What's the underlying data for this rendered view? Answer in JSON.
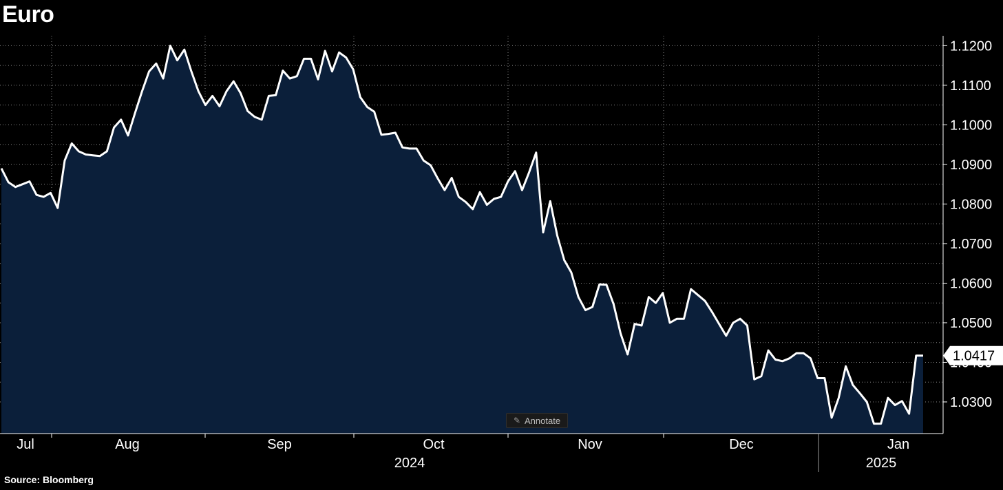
{
  "header": {
    "title": "Euro"
  },
  "footer": {
    "source": "Source: Bloomberg"
  },
  "toolbar": {
    "annotate_label": "Annotate",
    "annotate_icon": "pencil-icon"
  },
  "colors": {
    "background": "#000000",
    "line": "#ffffff",
    "area_fill": "#0b1f3a",
    "grid": "#8c8c8c"
  },
  "chart_data": {
    "type": "area",
    "title": "Euro",
    "xlabel": "",
    "ylabel": "",
    "ylim": [
      1.022,
      1.1225
    ],
    "grid": true,
    "y_axis_position": "right",
    "y_ticks": [
      "1.0300",
      "1.0400",
      "1.0500",
      "1.0600",
      "1.0700",
      "1.0800",
      "1.0900",
      "1.1000",
      "1.1100",
      "1.1200"
    ],
    "x_tick_labels": [
      "Jul",
      "Aug",
      "Sep",
      "Oct",
      "Nov",
      "Dec",
      "Jan"
    ],
    "x_year_labels": [
      "2024",
      "2025"
    ],
    "last_value_label": "1.0417",
    "series": [
      {
        "values": [
          1.089,
          1.0855,
          1.0843,
          1.085,
          1.0857,
          1.0823,
          1.0818,
          1.0828,
          1.079,
          1.091,
          1.0953,
          1.0933,
          1.0925,
          1.0923,
          1.0921,
          1.0933,
          1.0993,
          1.1013,
          1.0973,
          1.103,
          1.1085,
          1.1135,
          1.1155,
          1.1117,
          1.12,
          1.1163,
          1.119,
          1.1135,
          1.1085,
          1.105,
          1.1073,
          1.1047,
          1.1085,
          1.111,
          1.108,
          1.1035,
          1.102,
          1.1013,
          1.1073,
          1.1075,
          1.1137,
          1.1117,
          1.1123,
          1.1167,
          1.1167,
          1.1115,
          1.1187,
          1.1135,
          1.1183,
          1.117,
          1.114,
          1.107,
          1.1045,
          1.1033,
          1.0975,
          1.0977,
          1.098,
          1.0943,
          1.094,
          1.094,
          1.091,
          1.0898,
          1.0865,
          1.0835,
          1.0866,
          1.0818,
          1.0805,
          1.0787,
          1.083,
          1.0798,
          1.0813,
          1.0818,
          1.0857,
          1.0883,
          1.0835,
          1.088,
          1.093,
          1.0728,
          1.0807,
          1.072,
          1.0658,
          1.0627,
          1.0565,
          1.0532,
          1.054,
          1.0597,
          1.0596,
          1.0547,
          1.0473,
          1.042,
          1.0497,
          1.0493,
          1.0565,
          1.055,
          1.0575,
          1.05,
          1.051,
          1.051,
          1.0585,
          1.057,
          1.0555,
          1.0527,
          1.0497,
          1.0467,
          1.05,
          1.051,
          1.0493,
          1.0357,
          1.0365,
          1.043,
          1.0407,
          1.0403,
          1.041,
          1.0423,
          1.0423,
          1.041,
          1.036,
          1.036,
          1.026,
          1.031,
          1.039,
          1.0343,
          1.0322,
          1.03,
          1.0245,
          1.0245,
          1.031,
          1.0292,
          1.0302,
          1.027,
          1.0417,
          1.0417
        ]
      }
    ]
  }
}
